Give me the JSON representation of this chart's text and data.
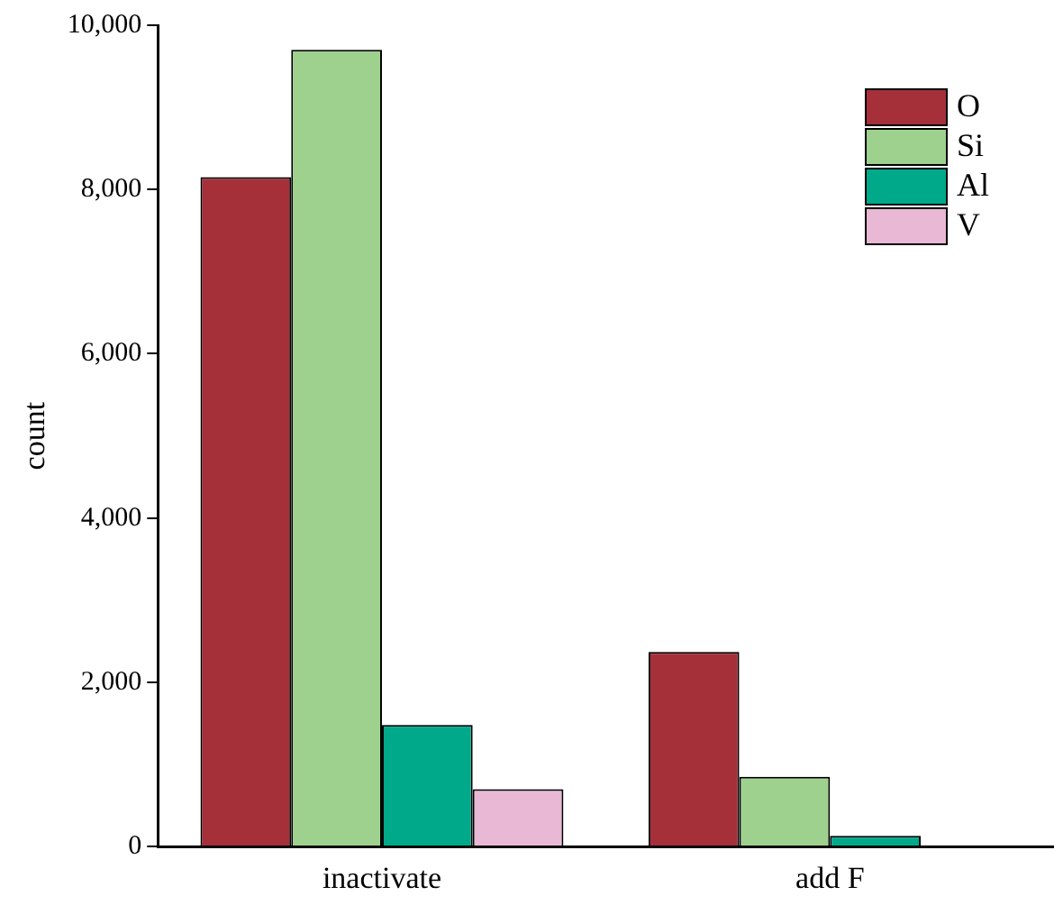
{
  "chart_data": {
    "type": "bar",
    "ylabel": "count",
    "categories": [
      "inactivate",
      "add F"
    ],
    "series": [
      {
        "name": "O",
        "color": "#a5303a",
        "values": [
          8150,
          2370
        ]
      },
      {
        "name": "Si",
        "color": "#9fd18e",
        "values": [
          9700,
          850
        ]
      },
      {
        "name": "Al",
        "color": "#00a98a",
        "values": [
          1480,
          130
        ]
      },
      {
        "name": "V",
        "color": "#e8b8d4",
        "values": [
          700,
          null
        ]
      }
    ],
    "ylim": [
      0,
      10000
    ],
    "yticks": [
      {
        "value": 0,
        "label": "0"
      },
      {
        "value": 2000,
        "label": "2,000"
      },
      {
        "value": 4000,
        "label": "4,000"
      },
      {
        "value": 6000,
        "label": "6,000"
      },
      {
        "value": 8000,
        "label": "8,000"
      },
      {
        "value": 10000,
        "label": "10,000"
      }
    ],
    "grid": false,
    "legend": "top right"
  }
}
